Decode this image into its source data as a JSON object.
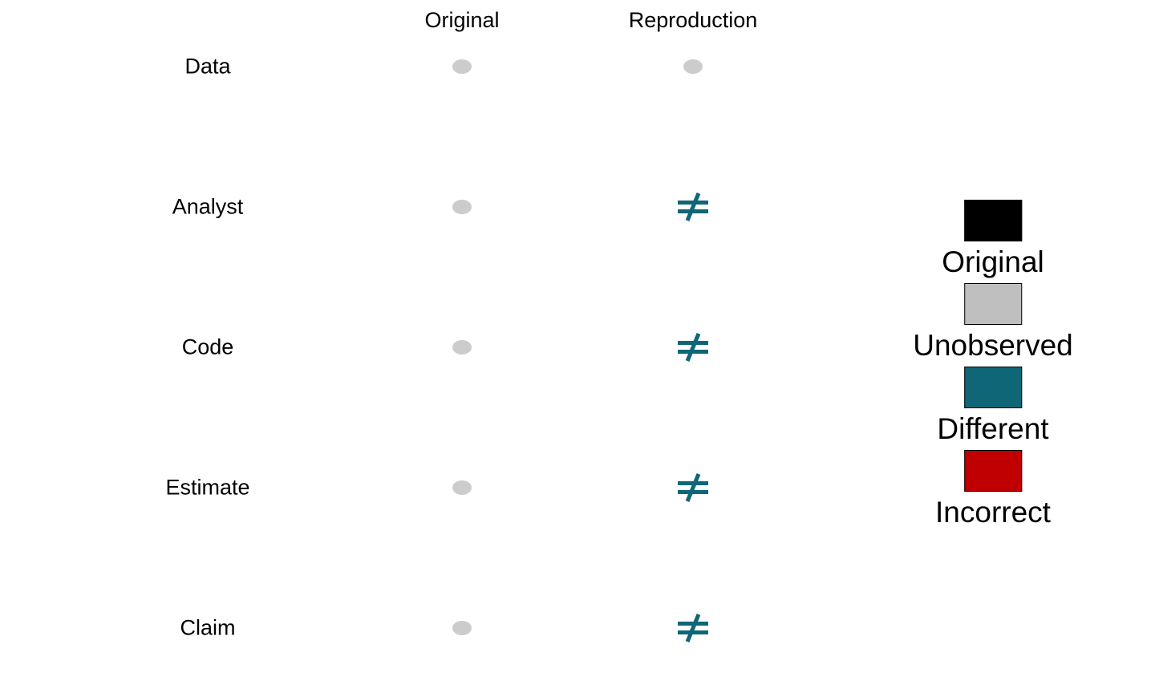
{
  "columns": {
    "original": "Original",
    "reproduction": "Reproduction"
  },
  "rows": [
    {
      "label": "Data",
      "original": "unobserved",
      "reproduction": "unobserved"
    },
    {
      "label": "Analyst",
      "original": "unobserved",
      "reproduction": "different"
    },
    {
      "label": "Code",
      "original": "unobserved",
      "reproduction": "different"
    },
    {
      "label": "Estimate",
      "original": "unobserved",
      "reproduction": "different"
    },
    {
      "label": "Claim",
      "original": "unobserved",
      "reproduction": "different"
    }
  ],
  "legend": [
    {
      "label": "Original",
      "color": "#000000"
    },
    {
      "label": "Unobserved",
      "color": "#bfbfbf"
    },
    {
      "label": "Different",
      "color": "#0f6677"
    },
    {
      "label": "Incorrect",
      "color": "#c00000"
    }
  ],
  "colors": {
    "dot": "#cccccc",
    "different": "#0f6677"
  },
  "symbols": {
    "different": "≠"
  }
}
